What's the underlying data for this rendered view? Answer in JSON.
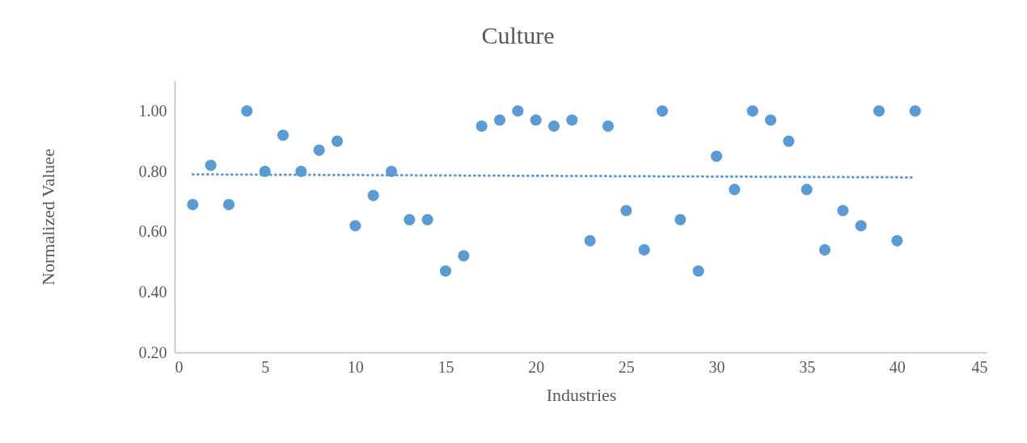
{
  "chart_data": {
    "type": "scatter",
    "title": "Culture",
    "xlabel": "Industries",
    "ylabel": "Normalized Valuee",
    "x": [
      1,
      2,
      3,
      4,
      5,
      6,
      7,
      8,
      9,
      10,
      11,
      12,
      13,
      14,
      15,
      16,
      17,
      18,
      19,
      20,
      21,
      22,
      23,
      24,
      25,
      26,
      27,
      28,
      29,
      30,
      31,
      32,
      33,
      34,
      35,
      36,
      37,
      38,
      39,
      40,
      41
    ],
    "series": [
      {
        "color": "#5b9bd5",
        "marker": "circle",
        "values": [
          0.69,
          0.82,
          0.69,
          1.0,
          0.8,
          0.92,
          0.8,
          0.87,
          0.9,
          0.62,
          0.72,
          0.8,
          0.64,
          0.64,
          0.47,
          0.52,
          0.95,
          0.97,
          1.0,
          0.97,
          0.95,
          0.97,
          0.57,
          0.95,
          0.67,
          0.54,
          1.0,
          0.64,
          0.47,
          0.85,
          0.74,
          1.0,
          0.97,
          0.9,
          0.74,
          0.54,
          0.67,
          0.62,
          1.0,
          0.57,
          1.0
        ]
      },
      {
        "type": "line",
        "color": "#5b9bd5",
        "line_style": "dotted",
        "x": [
          1,
          41
        ],
        "values": [
          0.79,
          0.78
        ]
      }
    ],
    "xlim": [
      0,
      45
    ],
    "xticks": [
      0,
      5,
      10,
      15,
      20,
      25,
      30,
      35,
      40,
      45
    ],
    "ylim": [
      0.2,
      1.1
    ],
    "yticks": [
      {
        "value": 0.2,
        "label": "0.20"
      },
      {
        "value": 0.4,
        "label": "0.40"
      },
      {
        "value": 0.6,
        "label": "0.60"
      },
      {
        "value": 0.8,
        "label": "0.80"
      },
      {
        "value": 1.0,
        "label": "1.00"
      }
    ],
    "grid": false
  }
}
